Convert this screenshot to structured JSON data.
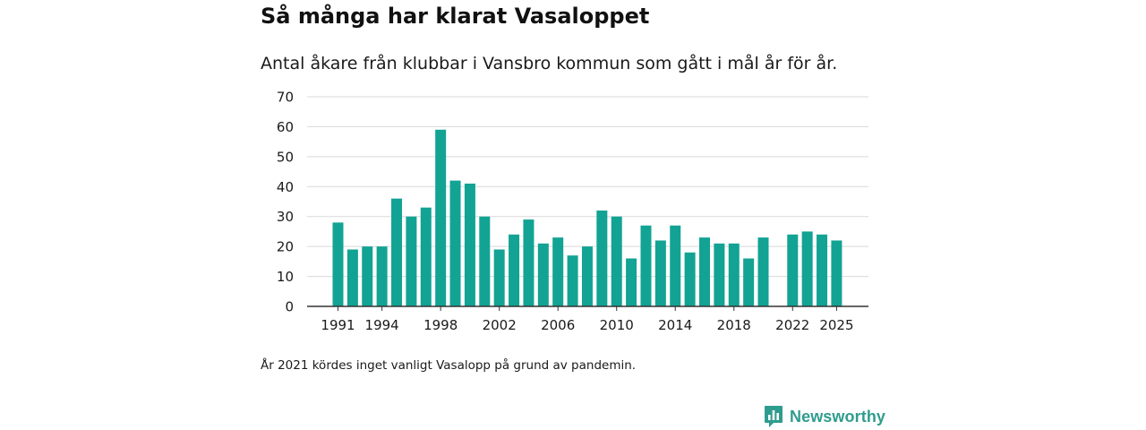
{
  "title": "Så många har klarat Vasaloppet",
  "subtitle": "Antal åkare från klubbar i Vansbro kommun som gått i mål år för år.",
  "footnote": "År 2021 kördes inget vanligt Vasalopp på grund av pandemin.",
  "brand": {
    "name": "Newsworthy",
    "color": "#2f9c8e"
  },
  "colors": {
    "bar": "#12a394",
    "grid": "#d9d9d9",
    "axis": "#333333"
  },
  "chart_data": {
    "type": "bar",
    "title": "Så många har klarat Vasaloppet",
    "xlabel": "",
    "ylabel": "",
    "ylim": [
      0,
      70
    ],
    "yticks": [
      0,
      10,
      20,
      30,
      40,
      50,
      60,
      70
    ],
    "x_tick_labels": [
      "1991",
      "1994",
      "1998",
      "2002",
      "2006",
      "2010",
      "2014",
      "2018",
      "2022",
      "2025"
    ],
    "categories": [
      "1991",
      "1992",
      "1993",
      "1994",
      "1995",
      "1996",
      "1997",
      "1998",
      "1999",
      "2000",
      "2001",
      "2002",
      "2003",
      "2004",
      "2005",
      "2006",
      "2007",
      "2008",
      "2009",
      "2010",
      "2011",
      "2012",
      "2013",
      "2014",
      "2015",
      "2016",
      "2017",
      "2018",
      "2019",
      "2020",
      "2021",
      "2022",
      "2023",
      "2024",
      "2025"
    ],
    "values": [
      28,
      19,
      20,
      20,
      36,
      30,
      33,
      59,
      42,
      41,
      30,
      19,
      24,
      29,
      21,
      23,
      17,
      20,
      32,
      30,
      16,
      27,
      22,
      27,
      18,
      23,
      21,
      21,
      16,
      23,
      null,
      24,
      25,
      24,
      22
    ]
  }
}
